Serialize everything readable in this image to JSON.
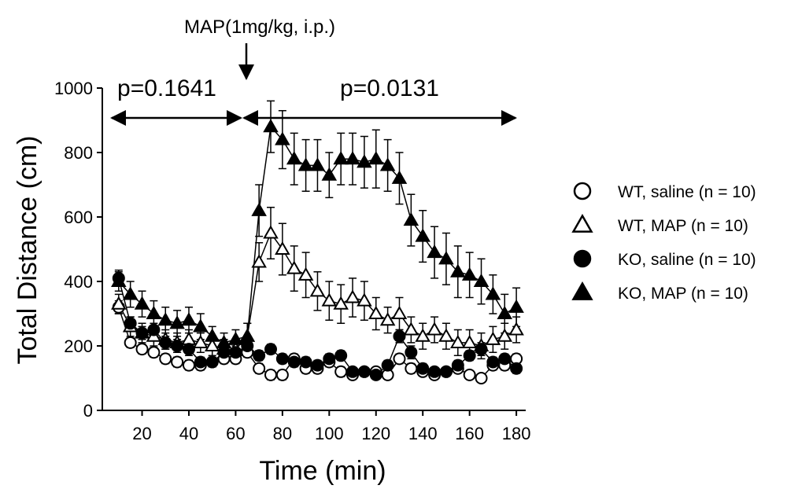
{
  "chart_data": {
    "type": "line",
    "title_annotation": "MAP(1mg/kg, i.p.)",
    "annotations": [
      "p=0.1641",
      "p=0.0131"
    ],
    "xlabel": "Time (min)",
    "ylabel": "Total Distance (cm)",
    "x": [
      10,
      15,
      20,
      25,
      30,
      35,
      40,
      45,
      50,
      55,
      60,
      65,
      70,
      75,
      80,
      85,
      90,
      95,
      100,
      105,
      110,
      115,
      120,
      125,
      130,
      135,
      140,
      145,
      150,
      155,
      160,
      165,
      170,
      175,
      180
    ],
    "xlim": [
      3,
      184
    ],
    "xticks": [
      20,
      40,
      60,
      80,
      100,
      120,
      140,
      160,
      180
    ],
    "ylim": [
      0,
      1000
    ],
    "yticks": [
      0,
      200,
      400,
      600,
      800,
      1000
    ],
    "series": [
      {
        "name": "WT, saline (n = 10)",
        "color": "#000000",
        "marker": "circle",
        "filled": false,
        "values": [
          320,
          210,
          190,
          180,
          160,
          150,
          140,
          140,
          150,
          160,
          160,
          180,
          130,
          110,
          110,
          160,
          130,
          130,
          150,
          120,
          110,
          120,
          120,
          110,
          160,
          130,
          120,
          110,
          120,
          130,
          110,
          100,
          140,
          140,
          160
        ],
        "errors": [
          20,
          15,
          15,
          15,
          15,
          15,
          15,
          15,
          15,
          15,
          15,
          15,
          15,
          15,
          15,
          15,
          15,
          15,
          15,
          15,
          12,
          12,
          12,
          12,
          15,
          15,
          12,
          12,
          12,
          12,
          12,
          12,
          15,
          15,
          15
        ]
      },
      {
        "name": "WT, MAP (n = 10)",
        "color": "#000000",
        "marker": "triangle",
        "filled": false,
        "values": [
          330,
          260,
          240,
          230,
          220,
          210,
          220,
          210,
          200,
          190,
          190,
          230,
          460,
          550,
          500,
          440,
          420,
          370,
          340,
          330,
          350,
          340,
          300,
          280,
          300,
          250,
          230,
          250,
          230,
          210,
          210,
          200,
          220,
          230,
          250
        ],
        "errors": [
          30,
          30,
          30,
          30,
          30,
          30,
          30,
          30,
          30,
          30,
          30,
          40,
          60,
          80,
          80,
          70,
          70,
          60,
          60,
          60,
          60,
          60,
          50,
          40,
          50,
          40,
          40,
          40,
          40,
          40,
          40,
          40,
          40,
          40,
          40
        ]
      },
      {
        "name": "KO, saline (n = 10)",
        "color": "#000000",
        "marker": "circle",
        "filled": true,
        "values": [
          410,
          270,
          240,
          250,
          210,
          200,
          190,
          150,
          150,
          180,
          180,
          200,
          170,
          190,
          160,
          150,
          150,
          140,
          160,
          170,
          120,
          120,
          110,
          140,
          230,
          180,
          130,
          120,
          120,
          140,
          170,
          190,
          150,
          160,
          130
        ],
        "errors": [
          25,
          20,
          20,
          20,
          20,
          20,
          20,
          15,
          15,
          20,
          20,
          20,
          15,
          15,
          15,
          15,
          15,
          15,
          15,
          15,
          12,
          12,
          12,
          15,
          20,
          20,
          15,
          12,
          12,
          15,
          15,
          20,
          15,
          15,
          15
        ]
      },
      {
        "name": "KO, MAP (n = 10)",
        "color": "#000000",
        "marker": "triangle",
        "filled": true,
        "values": [
          400,
          360,
          330,
          300,
          280,
          270,
          280,
          260,
          230,
          210,
          220,
          230,
          620,
          880,
          840,
          780,
          760,
          760,
          730,
          780,
          780,
          770,
          780,
          760,
          720,
          590,
          540,
          490,
          470,
          430,
          420,
          400,
          360,
          300,
          320
        ],
        "errors": [
          30,
          40,
          40,
          40,
          40,
          40,
          40,
          40,
          30,
          30,
          30,
          40,
          80,
          80,
          90,
          80,
          80,
          80,
          70,
          80,
          80,
          80,
          90,
          80,
          80,
          80,
          80,
          80,
          80,
          80,
          70,
          70,
          60,
          60,
          60
        ]
      }
    ]
  }
}
